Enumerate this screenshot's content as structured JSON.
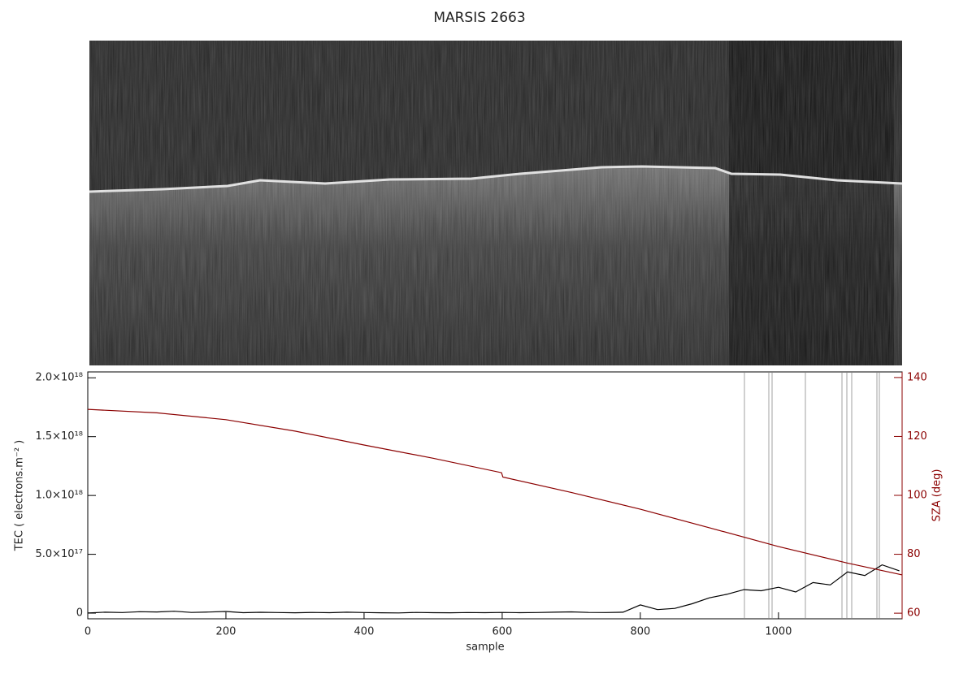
{
  "chart_data": {
    "type": "line",
    "title": "MARSIS 2663",
    "xlabel": "sample",
    "ylabel": "TEC ( electrons.m⁻² )",
    "y2label": "SZA (deg)",
    "xlim": [
      0,
      1179
    ],
    "xticks": [
      0,
      200,
      400,
      600,
      800,
      1000
    ],
    "ylim": [
      -4.8e+16,
      2.05e+18
    ],
    "yticks": [
      0,
      {
        "value": 5e+17,
        "label": "5.0×10¹⁷"
      },
      {
        "value": 1e+18,
        "label": "1.0×10¹⁸"
      },
      {
        "value": 1.5e+18,
        "label": "1.5×10¹⁸"
      },
      {
        "value": 2e+18,
        "label": "2.0×10¹⁸"
      }
    ],
    "y2lim": [
      58.1,
      141.9
    ],
    "y2ticks": [
      60,
      80,
      100,
      120,
      140
    ],
    "series": [
      {
        "name": "TEC",
        "color": "#000000",
        "x": [
          0,
          25,
          50,
          75,
          100,
          125,
          150,
          175,
          200,
          225,
          250,
          275,
          300,
          325,
          350,
          375,
          400,
          425,
          450,
          475,
          500,
          525,
          550,
          575,
          600,
          625,
          650,
          675,
          700,
          725,
          750,
          775,
          800,
          825,
          850,
          875,
          900,
          925,
          950,
          975,
          1000,
          1025,
          1050,
          1075,
          1100,
          1125,
          1150,
          1175
        ],
        "values": [
          1000000000000000.0,
          8000000000000000.0,
          5000000000000000.0,
          1.2e+16,
          1e+16,
          1.6e+16,
          6000000000000000.0,
          9000000000000000.0,
          1.4e+16,
          4000000000000000.0,
          7000000000000000.0,
          5000000000000000.0,
          3000000000000000.0,
          6000000000000000.0,
          4000000000000000.0,
          8000000000000000.0,
          5000000000000000.0,
          3000000000000000.0,
          2000000000000000.0,
          6000000000000000.0,
          4000000000000000.0,
          3000000000000000.0,
          5000000000000000.0,
          4000000000000000.0,
          6000000000000000.0,
          4000000000000000.0,
          5000000000000000.0,
          8000000000000000.0,
          1.1e+16,
          6000000000000000.0,
          5000000000000000.0,
          8000000000000000.0,
          7e+16,
          3e+16,
          4e+16,
          8e+16,
          1.3e+17,
          1.6e+17,
          2e+17,
          1.9e+17,
          2.2e+17,
          1.8e+17,
          2.6e+17,
          2.4e+17,
          3.5e+17,
          3.2e+17,
          4.1e+17,
          3.6e+17
        ]
      },
      {
        "name": "SZA",
        "color": "#8b0000",
        "axis": "y2",
        "x": [
          0,
          100,
          200,
          300,
          400,
          500,
          599,
          601,
          700,
          800,
          900,
          1000,
          1100,
          1179
        ],
        "values": [
          129.2,
          128,
          125.7,
          121.8,
          117.1,
          112.6,
          107.7,
          106.2,
          101,
          95.3,
          89,
          82.6,
          77,
          73
        ]
      }
    ]
  }
}
